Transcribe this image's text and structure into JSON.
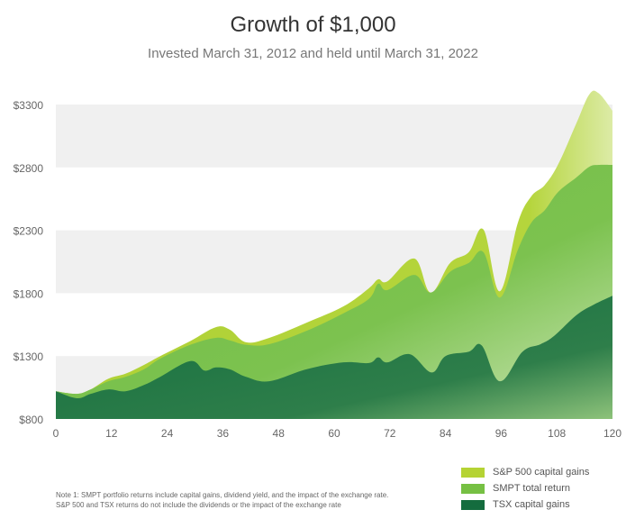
{
  "chart_data": {
    "type": "area",
    "title": "Growth of $1,000",
    "subtitle": "Invested March 31, 2012 and held until March 31, 2022",
    "xlabel": "",
    "ylabel": "",
    "xlim": [
      0,
      120
    ],
    "ylim": [
      800,
      3300
    ],
    "x_ticks": [
      "0",
      "12",
      "24",
      "36",
      "48",
      "60",
      "72",
      "84",
      "96",
      "108",
      "120"
    ],
    "x_tick_values": [
      0,
      12,
      24,
      36,
      48,
      60,
      72,
      84,
      96,
      108,
      120
    ],
    "y_ticks": [
      "$800",
      "$1300",
      "$1800",
      "$2300",
      "$2800",
      "$3300"
    ],
    "y_tick_values": [
      800,
      1300,
      1800,
      2300,
      2800,
      3300
    ],
    "grid": "alternating horizontal bands",
    "legend_position": "bottom-right",
    "series": [
      {
        "name": "S&P 500 capital gains",
        "color": "#B5D334",
        "x": [
          0,
          4.5,
          7.5,
          11.3,
          15,
          19,
          22.5,
          29,
          34.5,
          37.5,
          41,
          46,
          54,
          62,
          67.5,
          69.5,
          71.5,
          77.3,
          80.8,
          85,
          89,
          92.2,
          95.7,
          99.6,
          102.5,
          105.4,
          108.3,
          112.2,
          115,
          117,
          120
        ],
        "values": [
          1020,
          1000,
          1035,
          1120,
          1160,
          1230,
          1300,
          1420,
          1530,
          1510,
          1410,
          1445,
          1565,
          1695,
          1840,
          1910,
          1895,
          2075,
          1805,
          2040,
          2125,
          2305,
          1815,
          2360,
          2570,
          2660,
          2825,
          3150,
          3380,
          3390,
          3250
        ]
      },
      {
        "name": "SMPT total return",
        "color": "#76C043",
        "x": [
          0,
          4.5,
          7.5,
          11.3,
          15,
          19,
          22.5,
          29,
          34.5,
          37.5,
          41,
          46,
          54,
          62,
          67.5,
          69.5,
          71.5,
          77.3,
          80.8,
          85,
          89,
          92.2,
          95.7,
          99.6,
          102.5,
          105.4,
          108.3,
          112.2,
          115,
          117,
          120
        ],
        "values": [
          1020,
          1000,
          1035,
          1100,
          1135,
          1195,
          1280,
          1390,
          1445,
          1425,
          1390,
          1395,
          1500,
          1640,
          1755,
          1875,
          1825,
          1945,
          1805,
          1970,
          2040,
          2125,
          1765,
          2145,
          2360,
          2460,
          2605,
          2720,
          2805,
          2820,
          2820
        ]
      },
      {
        "name": "TSX capital gains",
        "color": "#146C3E",
        "x": [
          0,
          4.5,
          7.5,
          11.3,
          15,
          19,
          22.5,
          29,
          32,
          34.5,
          37.5,
          41,
          46,
          54,
          62,
          67.5,
          69.5,
          71.5,
          76.3,
          81,
          84,
          89,
          91.8,
          95.7,
          100.6,
          104.5,
          107.4,
          112.2,
          116,
          120
        ],
        "values": [
          1020,
          965,
          1000,
          1035,
          1020,
          1070,
          1135,
          1260,
          1185,
          1210,
          1195,
          1135,
          1100,
          1195,
          1250,
          1245,
          1290,
          1250,
          1315,
          1170,
          1300,
          1335,
          1385,
          1100,
          1335,
          1395,
          1460,
          1625,
          1710,
          1780
        ]
      }
    ]
  },
  "note": {
    "line1": "Note 1: SMPT portfolio returns include capital gains, dividend yield, and the impact of the exchange rate.",
    "line2": "S&P 500 and TSX returns do not include the dividends or the impact of the exchange rate"
  }
}
